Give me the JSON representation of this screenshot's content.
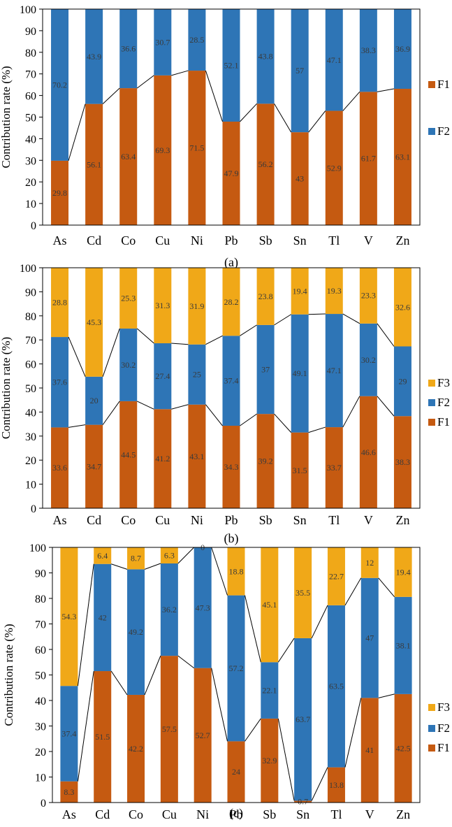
{
  "colors": {
    "F1": "#C55A11",
    "F2": "#2E75B6",
    "F3": "#F0A818",
    "axis": "#000000",
    "label_text": "#3a3a3a"
  },
  "chart_data": [
    {
      "type": "bar",
      "stacked": true,
      "panel_label": "(a)",
      "ylabel": "Contribution rate (%)",
      "ylim": [
        0,
        100
      ],
      "yticks": [
        0,
        10,
        20,
        30,
        40,
        50,
        60,
        70,
        80,
        90,
        100
      ],
      "categories": [
        "As",
        "Cd",
        "Co",
        "Cu",
        "Ni",
        "Pb",
        "Sb",
        "Sn",
        "Tl",
        "V",
        "Zn"
      ],
      "series": [
        {
          "name": "F1",
          "values": [
            29.8,
            56.1,
            63.4,
            69.3,
            71.5,
            47.9,
            56.2,
            43,
            52.9,
            61.7,
            63.1
          ],
          "labels": [
            "29.8",
            "56.1",
            "63.4",
            "69.3",
            "71.5",
            "47.9",
            "56.2",
            "43",
            "52.9",
            "61.7",
            "63.1"
          ]
        },
        {
          "name": "F2",
          "values": [
            70.2,
            43.9,
            36.6,
            30.7,
            28.5,
            52.1,
            43.8,
            57,
            47.1,
            38.3,
            36.9
          ],
          "labels": [
            "70.2",
            "43.9",
            "36.6",
            "30.7",
            "28.5",
            "52.1",
            "43.8",
            "57",
            "47.1",
            "38.3",
            "36.9"
          ]
        }
      ],
      "legend_order": [
        "F1",
        "F2"
      ],
      "legend_position": "right"
    },
    {
      "type": "bar",
      "stacked": true,
      "panel_label": "(b)",
      "ylabel": "Contribution rate (%)",
      "ylim": [
        0,
        100
      ],
      "yticks": [
        0,
        10,
        20,
        30,
        40,
        50,
        60,
        70,
        80,
        90,
        100
      ],
      "categories": [
        "As",
        "Cd",
        "Co",
        "Cu",
        "Ni",
        "Pb",
        "Sb",
        "Sn",
        "Tl",
        "V",
        "Zn"
      ],
      "series": [
        {
          "name": "F1",
          "values": [
            33.6,
            34.7,
            44.5,
            41.2,
            43.1,
            34.3,
            39.2,
            31.5,
            33.7,
            46.6,
            38.3
          ],
          "labels": [
            "33.6",
            "34.7",
            "44.5",
            "41.2",
            "43.1",
            "34.3",
            "39.2",
            "31.5",
            "33.7",
            "46.6",
            "38.3"
          ]
        },
        {
          "name": "F2",
          "values": [
            37.6,
            20,
            30.2,
            27.4,
            25,
            37.4,
            37,
            49.1,
            47.1,
            30.2,
            29
          ],
          "labels": [
            "37.6",
            "20",
            "30.2",
            "27.4",
            "25",
            "37.4",
            "37",
            "49.1",
            "47.1",
            "30.2",
            "29"
          ]
        },
        {
          "name": "F3",
          "values": [
            28.8,
            45.3,
            25.3,
            31.3,
            31.9,
            28.2,
            23.8,
            19.4,
            19.3,
            23.3,
            32.6
          ],
          "labels": [
            "28.8",
            "45.3",
            "25.3",
            "31.3",
            "31.9",
            "28.2",
            "23.8",
            "19.4",
            "19.3",
            "23.3",
            "32.6"
          ]
        }
      ],
      "legend_order": [
        "F3",
        "F2",
        "F1"
      ],
      "legend_position": "right"
    },
    {
      "type": "bar",
      "stacked": true,
      "panel_label": "(c)",
      "ylabel": "Contribution rate (%)",
      "ylim": [
        0,
        100
      ],
      "yticks": [
        0,
        10,
        20,
        30,
        40,
        50,
        60,
        70,
        80,
        90,
        100
      ],
      "categories": [
        "As",
        "Cd",
        "Co",
        "Cu",
        "Ni",
        "Pb",
        "Sb",
        "Sn",
        "Tl",
        "V",
        "Zn"
      ],
      "series": [
        {
          "name": "F1",
          "values": [
            8.3,
            51.5,
            42.2,
            57.5,
            52.7,
            24,
            32.9,
            0.7,
            13.8,
            41,
            42.5
          ],
          "labels": [
            "8.3",
            "51.5",
            "42.2",
            "57.5",
            "52.7",
            "24",
            "32.9",
            "0.7",
            "13.8",
            "41",
            "42.5"
          ]
        },
        {
          "name": "F2",
          "values": [
            37.4,
            42,
            49.2,
            36.2,
            47.3,
            57.2,
            22.1,
            63.7,
            63.5,
            47,
            38.1
          ],
          "labels": [
            "37.4",
            "42",
            "49.2",
            "36.2",
            "47.3",
            "57.2",
            "22.1",
            "63.7",
            "63.5",
            "47",
            "38.1"
          ]
        },
        {
          "name": "F3",
          "values": [
            54.3,
            6.4,
            8.7,
            6.3,
            0,
            18.8,
            45.1,
            35.5,
            22.7,
            12,
            19.4
          ],
          "labels": [
            "54.3",
            "6.4",
            "8.7",
            "6.3",
            "0",
            "18.8",
            "45.1",
            "35.5",
            "22.7",
            "12",
            "19.4"
          ]
        }
      ],
      "legend_order": [
        "F3",
        "F2",
        "F1"
      ],
      "legend_position": "right"
    }
  ]
}
